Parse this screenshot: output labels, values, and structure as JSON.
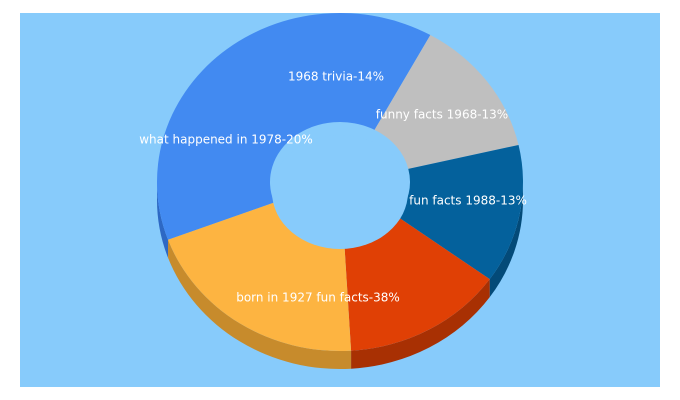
{
  "colors": {
    "background": "#87cbfb"
  },
  "chart_data": {
    "type": "pie",
    "variant": "3d-donut",
    "title": "",
    "slices": [
      {
        "label": "born in 1927 fun facts-38%",
        "value": 38,
        "color": "#428af1",
        "side_color": "#2d68c4"
      },
      {
        "label": "fun facts 1988-13%",
        "value": 13,
        "color": "#bfbfbf",
        "side_color": "#8f8f8f"
      },
      {
        "label": "funny facts 1968-13%",
        "value": 13,
        "color": "#04619c",
        "side_color": "#034a78"
      },
      {
        "label": "1968 trivia-14%",
        "value": 14,
        "color": "#e04005",
        "side_color": "#a83003"
      },
      {
        "label": "what happened in 1978-20%",
        "value": 20,
        "color": "#fdb441",
        "side_color": "#c78b2c"
      }
    ]
  }
}
